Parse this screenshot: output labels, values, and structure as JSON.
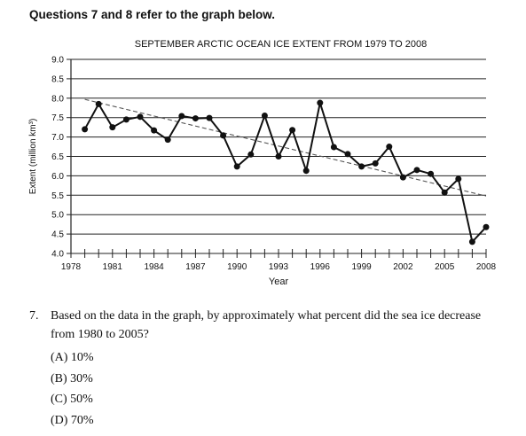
{
  "heading": "Questions 7 and 8 refer to the graph below.",
  "chart_data": {
    "type": "line",
    "title": "SEPTEMBER ARCTIC OCEAN ICE EXTENT FROM 1979 TO 2008",
    "xlabel": "Year",
    "ylabel": "Extent (million km³)",
    "xlim": [
      1978,
      2008
    ],
    "ylim": [
      4.0,
      9.0
    ],
    "x_ticks": [
      "1978",
      "1981",
      "1984",
      "1987",
      "1990",
      "1993",
      "1996",
      "1999",
      "2002",
      "2005",
      "2008"
    ],
    "y_ticks": [
      "4.0",
      "4.5",
      "5.0",
      "5.5",
      "6.0",
      "6.5",
      "7.0",
      "7.5",
      "8.0",
      "8.5",
      "9.0"
    ],
    "grid": "horizontal",
    "x": [
      1979,
      1980,
      1981,
      1982,
      1983,
      1984,
      1985,
      1986,
      1987,
      1988,
      1989,
      1990,
      1991,
      1992,
      1993,
      1994,
      1995,
      1996,
      1997,
      1998,
      1999,
      2000,
      2001,
      2002,
      2003,
      2004,
      2005,
      2006,
      2007,
      2008
    ],
    "series": [
      {
        "values": [
          7.2,
          7.85,
          7.25,
          7.45,
          7.52,
          7.17,
          6.93,
          7.54,
          7.48,
          7.49,
          7.04,
          6.24,
          6.55,
          7.55,
          6.5,
          7.18,
          6.13,
          7.88,
          6.74,
          6.56,
          6.24,
          6.32,
          6.75,
          5.96,
          6.15,
          6.05,
          5.57,
          5.92,
          4.3,
          4.68
        ]
      },
      {
        "style": "dashed",
        "x": [
          1979,
          2008
        ],
        "values": [
          7.97,
          5.48
        ]
      }
    ]
  },
  "question": {
    "number": "7.",
    "text": "Based on the data in the graph, by approximately what percent did the sea ice decrease from 1980 to 2005?",
    "choices": [
      "(A)  10%",
      "(B)  30%",
      "(C)  50%",
      "(D)  70%"
    ]
  }
}
